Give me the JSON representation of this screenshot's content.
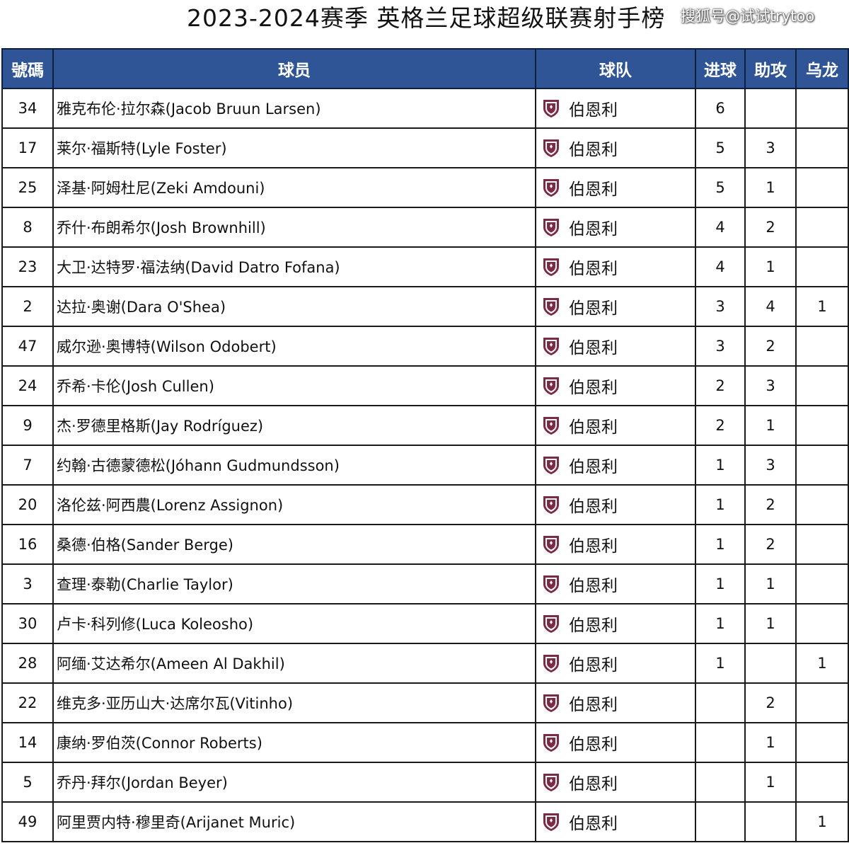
{
  "title": "2023-2024赛季 英格兰足球超级联赛射手榜",
  "watermark": "搜狐号@试试trytoo",
  "header": {
    "number": "號碼",
    "player": "球员",
    "team": "球队",
    "goals": "进球",
    "assists": "助攻",
    "own_goals": "乌龙"
  },
  "colors": {
    "header_bg": "#2f5597",
    "header_text": "#ffffff",
    "crest_claret": "#7a2b45",
    "crest_blue": "#8fb8de"
  },
  "team_icon": "burnley-crest-icon",
  "rows": [
    {
      "number": "34",
      "player": "雅克布伦·拉尔森(Jacob Bruun Larsen)",
      "team": "伯恩利",
      "goals": "6",
      "assists": "",
      "own_goals": ""
    },
    {
      "number": "17",
      "player": "莱尔·福斯特(Lyle Foster)",
      "team": "伯恩利",
      "goals": "5",
      "assists": "3",
      "own_goals": ""
    },
    {
      "number": "25",
      "player": "泽基·阿姆杜尼(Zeki Amdouni)",
      "team": "伯恩利",
      "goals": "5",
      "assists": "1",
      "own_goals": ""
    },
    {
      "number": "8",
      "player": "乔什·布朗希尔(Josh Brownhill)",
      "team": "伯恩利",
      "goals": "4",
      "assists": "2",
      "own_goals": ""
    },
    {
      "number": "23",
      "player": "大卫·达特罗·福法纳(David Datro Fofana)",
      "team": "伯恩利",
      "goals": "4",
      "assists": "1",
      "own_goals": ""
    },
    {
      "number": "2",
      "player": "达拉·奥谢(Dara O'Shea)",
      "team": "伯恩利",
      "goals": "3",
      "assists": "4",
      "own_goals": "1"
    },
    {
      "number": "47",
      "player": "威尔逊·奥博特(Wilson Odobert)",
      "team": "伯恩利",
      "goals": "3",
      "assists": "2",
      "own_goals": ""
    },
    {
      "number": "24",
      "player": "乔希·卡伦(Josh Cullen)",
      "team": "伯恩利",
      "goals": "2",
      "assists": "3",
      "own_goals": ""
    },
    {
      "number": "9",
      "player": "杰·罗德里格斯(Jay Rodríguez)",
      "team": "伯恩利",
      "goals": "2",
      "assists": "1",
      "own_goals": ""
    },
    {
      "number": "7",
      "player": "约翰·古德蒙德松(Jóhann Gudmundsson)",
      "team": "伯恩利",
      "goals": "1",
      "assists": "3",
      "own_goals": ""
    },
    {
      "number": "20",
      "player": "洛伦兹·阿西農(Lorenz Assignon)",
      "team": "伯恩利",
      "goals": "1",
      "assists": "2",
      "own_goals": ""
    },
    {
      "number": "16",
      "player": "桑德·伯格(Sander Berge)",
      "team": "伯恩利",
      "goals": "1",
      "assists": "2",
      "own_goals": ""
    },
    {
      "number": "3",
      "player": "查理·泰勒(Charlie Taylor)",
      "team": "伯恩利",
      "goals": "1",
      "assists": "1",
      "own_goals": ""
    },
    {
      "number": "30",
      "player": "卢卡·科列修(Luca Koleosho)",
      "team": "伯恩利",
      "goals": "1",
      "assists": "1",
      "own_goals": ""
    },
    {
      "number": "28",
      "player": "阿缅·艾达希尔(Ameen Al Dakhil)",
      "team": "伯恩利",
      "goals": "1",
      "assists": "",
      "own_goals": "1"
    },
    {
      "number": "22",
      "player": "维克多·亚历山大·达席尔瓦(Vitinho)",
      "team": "伯恩利",
      "goals": "",
      "assists": "2",
      "own_goals": ""
    },
    {
      "number": "14",
      "player": "康纳·罗伯茨(Connor Roberts)",
      "team": "伯恩利",
      "goals": "",
      "assists": "1",
      "own_goals": ""
    },
    {
      "number": "5",
      "player": "乔丹·拜尔(Jordan Beyer)",
      "team": "伯恩利",
      "goals": "",
      "assists": "1",
      "own_goals": ""
    },
    {
      "number": "49",
      "player": "阿里贾内特·穆里奇(Arijanet Muric)",
      "team": "伯恩利",
      "goals": "",
      "assists": "",
      "own_goals": "1"
    }
  ]
}
